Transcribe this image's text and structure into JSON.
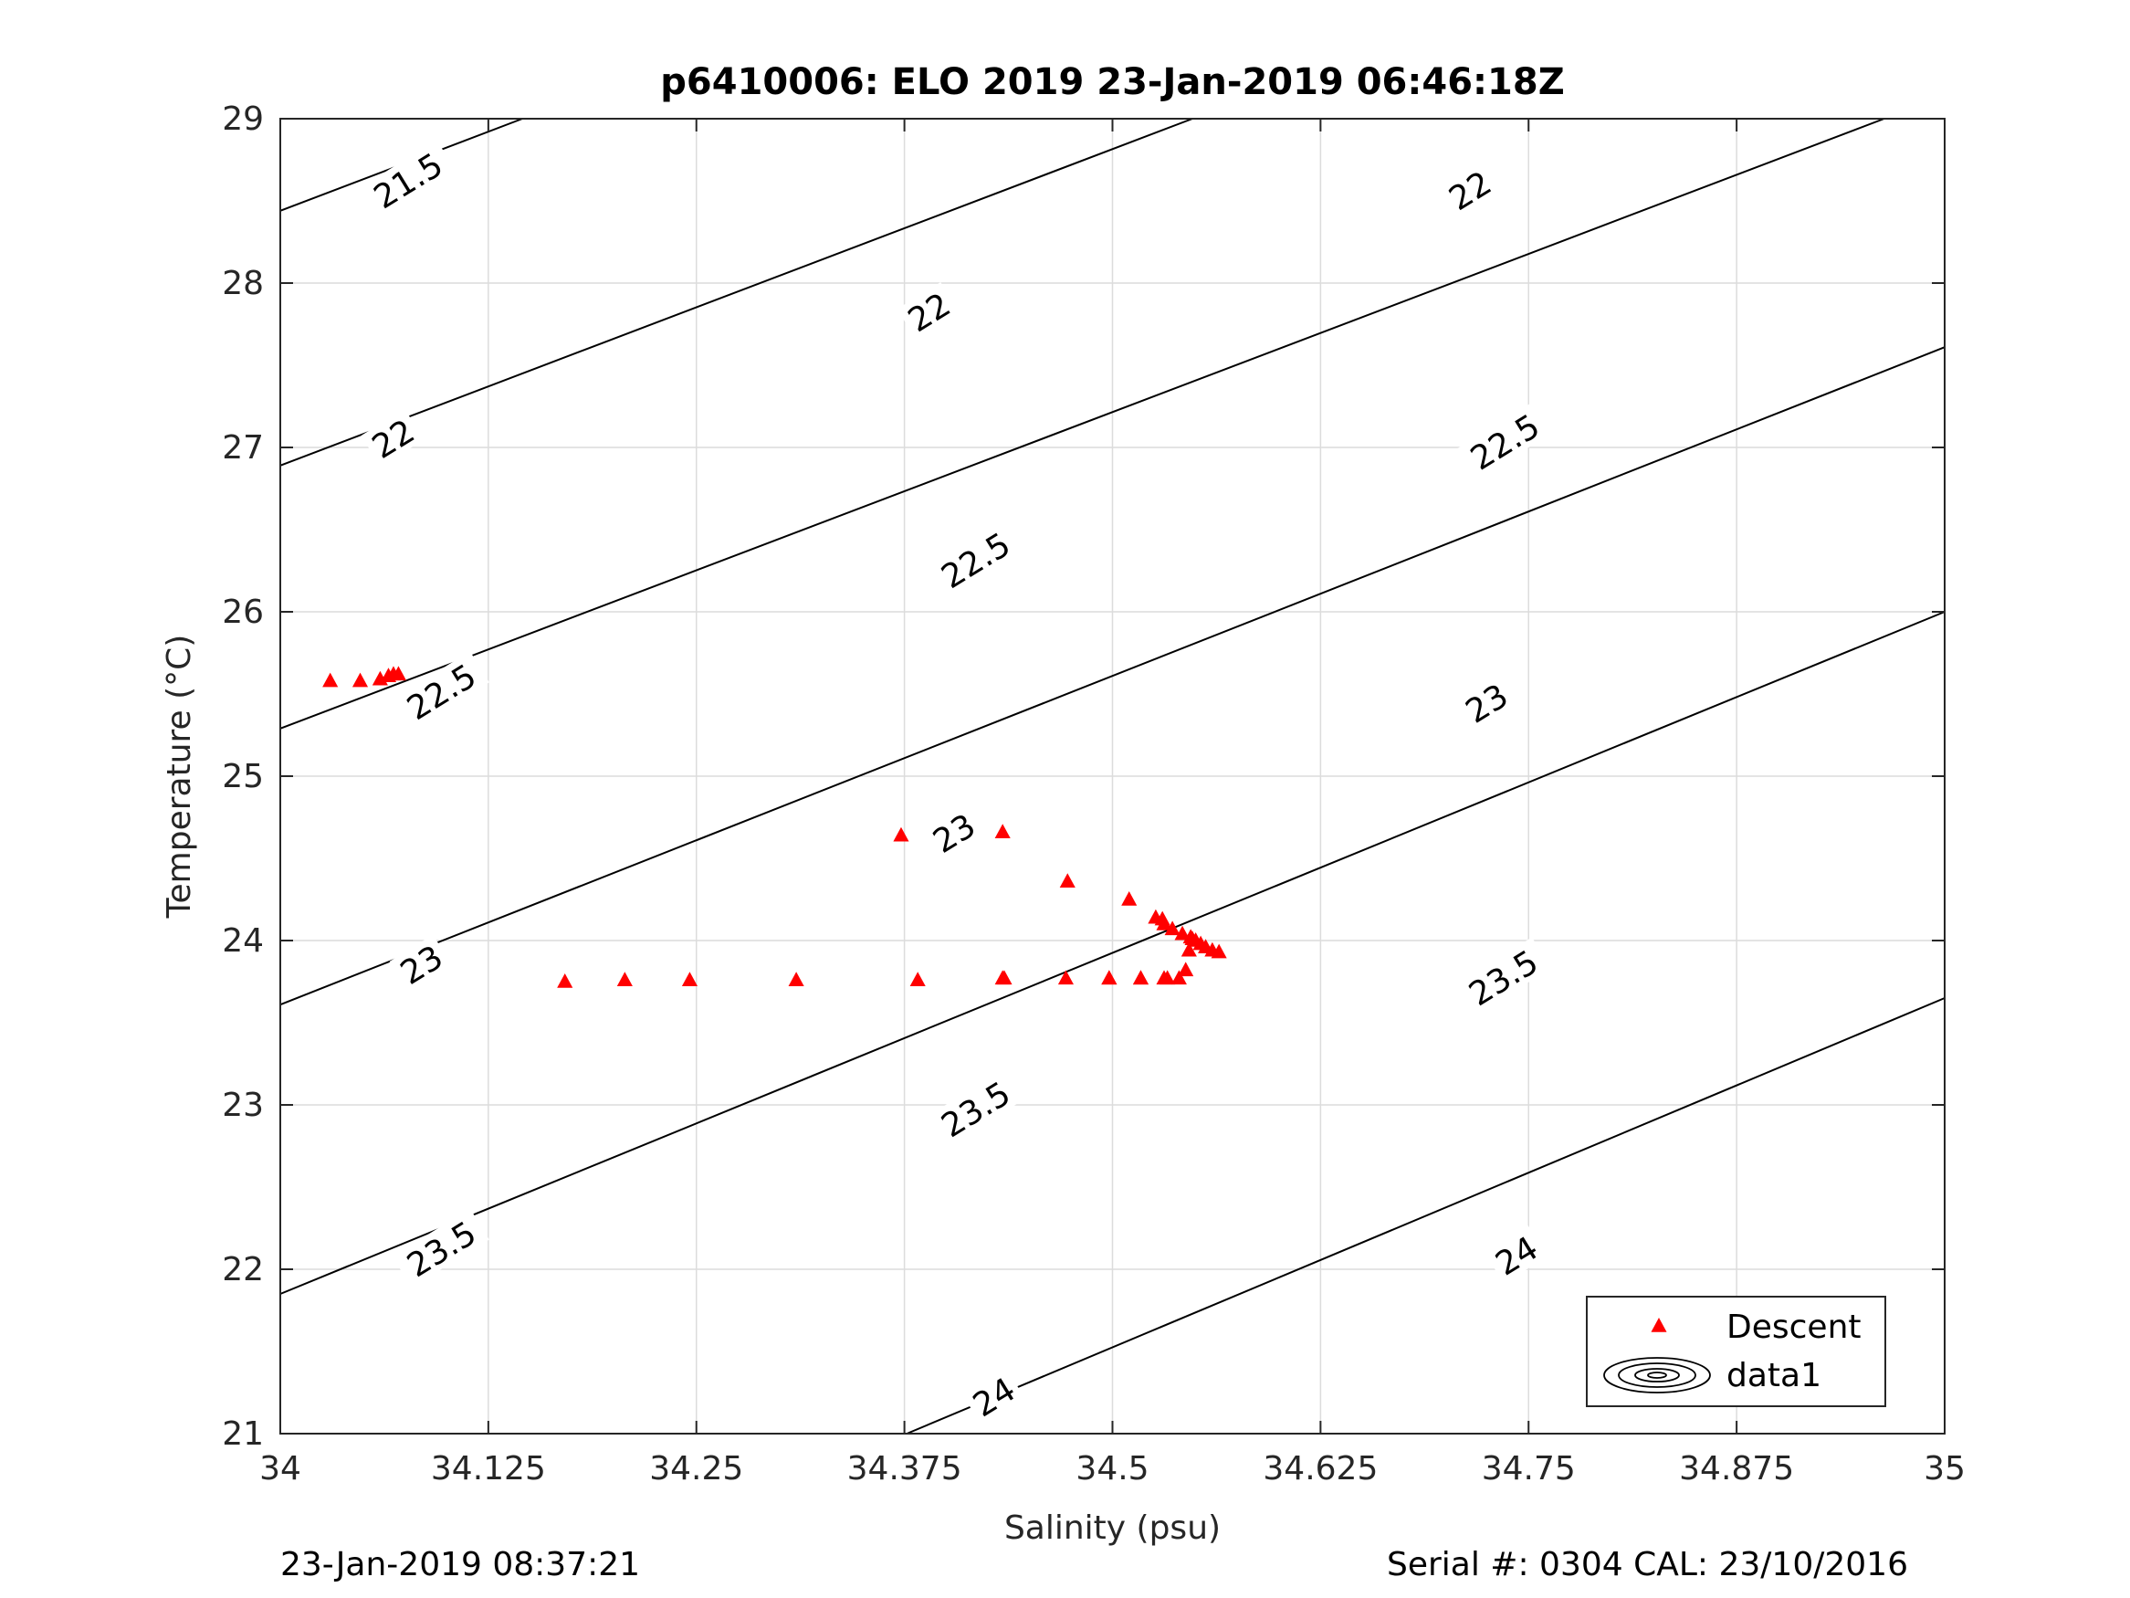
{
  "footer": {
    "left": "23-Jan-2019 08:37:21",
    "right": "Serial #: 0304  CAL: 23/10/2016"
  },
  "chart_data": {
    "type": "scatter",
    "title": "p6410006: ELO 2019 23-Jan-2019 06:46:18Z",
    "xlabel": "Salinity (psu)",
    "ylabel": "Temperature (°C)",
    "xlim": [
      34,
      35
    ],
    "ylim": [
      21,
      29
    ],
    "xticks": [
      34,
      34.125,
      34.25,
      34.375,
      34.5,
      34.625,
      34.75,
      34.875,
      35
    ],
    "xtick_labels": [
      "34",
      "34.125",
      "34.25",
      "34.375",
      "34.5",
      "34.625",
      "34.75",
      "34.875",
      "35"
    ],
    "yticks": [
      21,
      22,
      23,
      24,
      25,
      26,
      27,
      28,
      29
    ],
    "ytick_labels": [
      "21",
      "22",
      "23",
      "24",
      "25",
      "26",
      "27",
      "28",
      "29"
    ],
    "grid": true,
    "legend": {
      "placement": "bottom-right",
      "entries": [
        "Descent",
        "data1"
      ]
    },
    "colors": {
      "descent": "#ff0000",
      "contour": "#000000",
      "grid": "#dcdcdc"
    },
    "series": [
      {
        "name": "Descent",
        "marker": "triangle",
        "x": [
          34.03,
          34.048,
          34.06,
          34.065,
          34.068,
          34.071,
          34.171,
          34.207,
          34.246,
          34.31,
          34.373,
          34.383,
          34.434,
          34.435,
          34.473,
          34.498,
          34.51,
          34.517,
          34.526,
          34.53,
          34.531,
          34.533,
          34.536,
          34.542,
          34.547,
          34.548,
          34.55,
          34.553,
          34.556,
          34.56,
          34.564,
          34.434,
          34.472,
          34.498,
          34.517,
          34.531,
          34.54,
          34.544,
          34.546
        ],
        "y": [
          25.58,
          25.58,
          25.59,
          25.61,
          25.62,
          25.62,
          23.75,
          23.76,
          23.76,
          23.76,
          24.64,
          23.76,
          24.66,
          23.77,
          24.36,
          23.77,
          24.25,
          23.77,
          24.14,
          24.13,
          24.1,
          23.77,
          24.07,
          24.04,
          24.02,
          24.01,
          24.0,
          23.98,
          23.96,
          23.94,
          23.93,
          23.77,
          23.77,
          23.77,
          23.77,
          23.77,
          23.77,
          23.82,
          23.94
        ]
      }
    ],
    "contour_labels": [
      {
        "text": "21.5",
        "x": 34.077,
        "y": 28.62
      },
      {
        "text": "22",
        "x": 34.068,
        "y": 27.05
      },
      {
        "text": "22",
        "x": 34.39,
        "y": 27.82
      },
      {
        "text": "22",
        "x": 34.715,
        "y": 28.56
      },
      {
        "text": "22.5",
        "x": 34.097,
        "y": 25.51
      },
      {
        "text": "22.5",
        "x": 34.418,
        "y": 26.31
      },
      {
        "text": "22.5",
        "x": 34.736,
        "y": 27.03
      },
      {
        "text": "23",
        "x": 34.085,
        "y": 23.85
      },
      {
        "text": "23",
        "x": 34.405,
        "y": 24.65
      },
      {
        "text": "23",
        "x": 34.725,
        "y": 25.44
      },
      {
        "text": "23.5",
        "x": 34.097,
        "y": 22.12
      },
      {
        "text": "23.5",
        "x": 34.418,
        "y": 22.97
      },
      {
        "text": "23.5",
        "x": 34.735,
        "y": 23.77
      },
      {
        "text": "24",
        "x": 34.429,
        "y": 21.22
      },
      {
        "text": "24",
        "x": 34.743,
        "y": 22.08
      }
    ]
  }
}
